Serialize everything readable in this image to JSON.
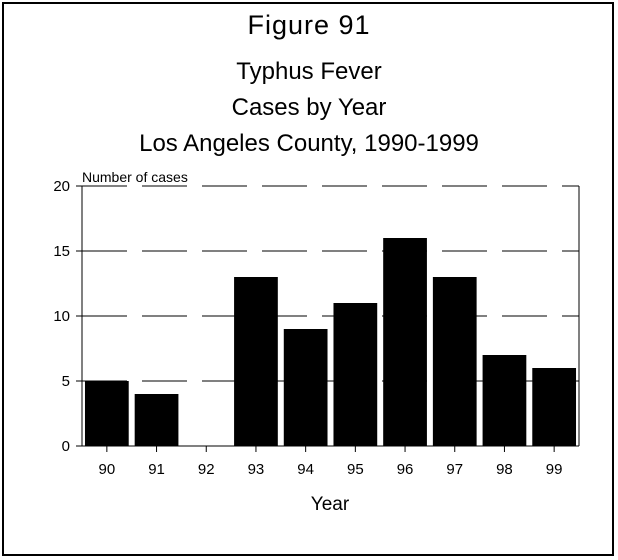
{
  "figure_label": "Figure 91",
  "chart_data": {
    "type": "bar",
    "title": [
      "Typhus Fever",
      "Cases by Year",
      "Los Angeles County, 1990-1999"
    ],
    "categories": [
      "90",
      "91",
      "92",
      "93",
      "94",
      "95",
      "96",
      "97",
      "98",
      "99"
    ],
    "values": [
      5,
      4,
      0,
      13,
      9,
      11,
      16,
      13,
      7,
      6
    ],
    "xlabel": "Year",
    "ylabel": "Number of cases",
    "ylim": [
      0,
      20
    ],
    "yticks": [
      0,
      5,
      10,
      15,
      20
    ],
    "grid": "dashed horizontal",
    "bar_color": "#000000"
  }
}
